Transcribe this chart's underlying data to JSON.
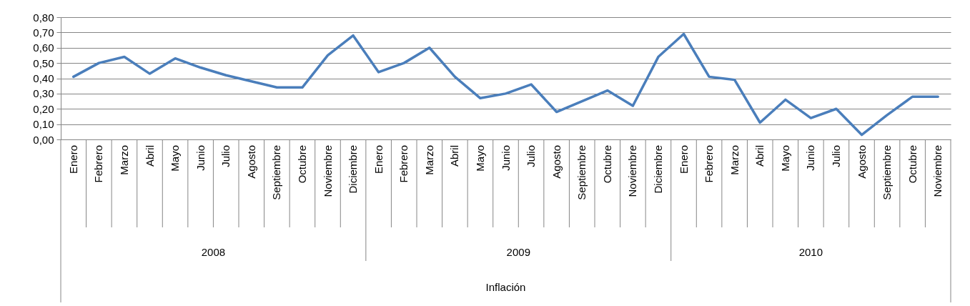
{
  "chart_data": {
    "type": "line",
    "categories": [
      "Enero",
      "Febrero",
      "Marzo",
      "Abril",
      "Mayo",
      "Junio",
      "Julio",
      "Agosto",
      "Septiembre",
      "Octubre",
      "Noviembre",
      "Diciembre",
      "Enero",
      "Febrero",
      "Marzo",
      "Abril",
      "Mayo",
      "Junio",
      "Julio",
      "Agosto",
      "Septiembre",
      "Octubre",
      "Noviembre",
      "Diciembre",
      "Enero",
      "Febrero",
      "Marzo",
      "Abril",
      "Mayo",
      "Junio",
      "Julio",
      "Agosto",
      "Septiembre",
      "Octubre",
      "Noviembre"
    ],
    "series": [
      {
        "color": "#4a7ebb",
        "values": [
          0.41,
          0.5,
          0.54,
          0.43,
          0.53,
          0.47,
          0.42,
          0.38,
          0.34,
          0.34,
          0.55,
          0.68,
          0.44,
          0.5,
          0.6,
          0.41,
          0.27,
          0.3,
          0.36,
          0.18,
          0.25,
          0.32,
          0.22,
          0.54,
          0.69,
          0.41,
          0.39,
          0.11,
          0.26,
          0.14,
          0.2,
          0.03,
          0.16,
          0.28,
          0.28
        ]
      }
    ],
    "annotations": [
      "2008",
      "2009",
      "2010",
      "Inflación"
    ],
    "ylim": [
      0,
      0.8
    ],
    "yticks": [
      {
        "value": 0,
        "label": "0,00"
      },
      {
        "value": 0.1,
        "label": "0,10"
      },
      {
        "value": 0.2,
        "label": "0,20"
      },
      {
        "value": 0.3,
        "label": "0,30"
      },
      {
        "value": 0.4,
        "label": "0,40"
      },
      {
        "value": 0.5,
        "label": "0,50"
      },
      {
        "value": 0.6,
        "label": "0,60"
      },
      {
        "value": 0.7,
        "label": "0,70"
      },
      {
        "value": 0.8,
        "label": "0,80"
      }
    ],
    "grid": "y"
  }
}
